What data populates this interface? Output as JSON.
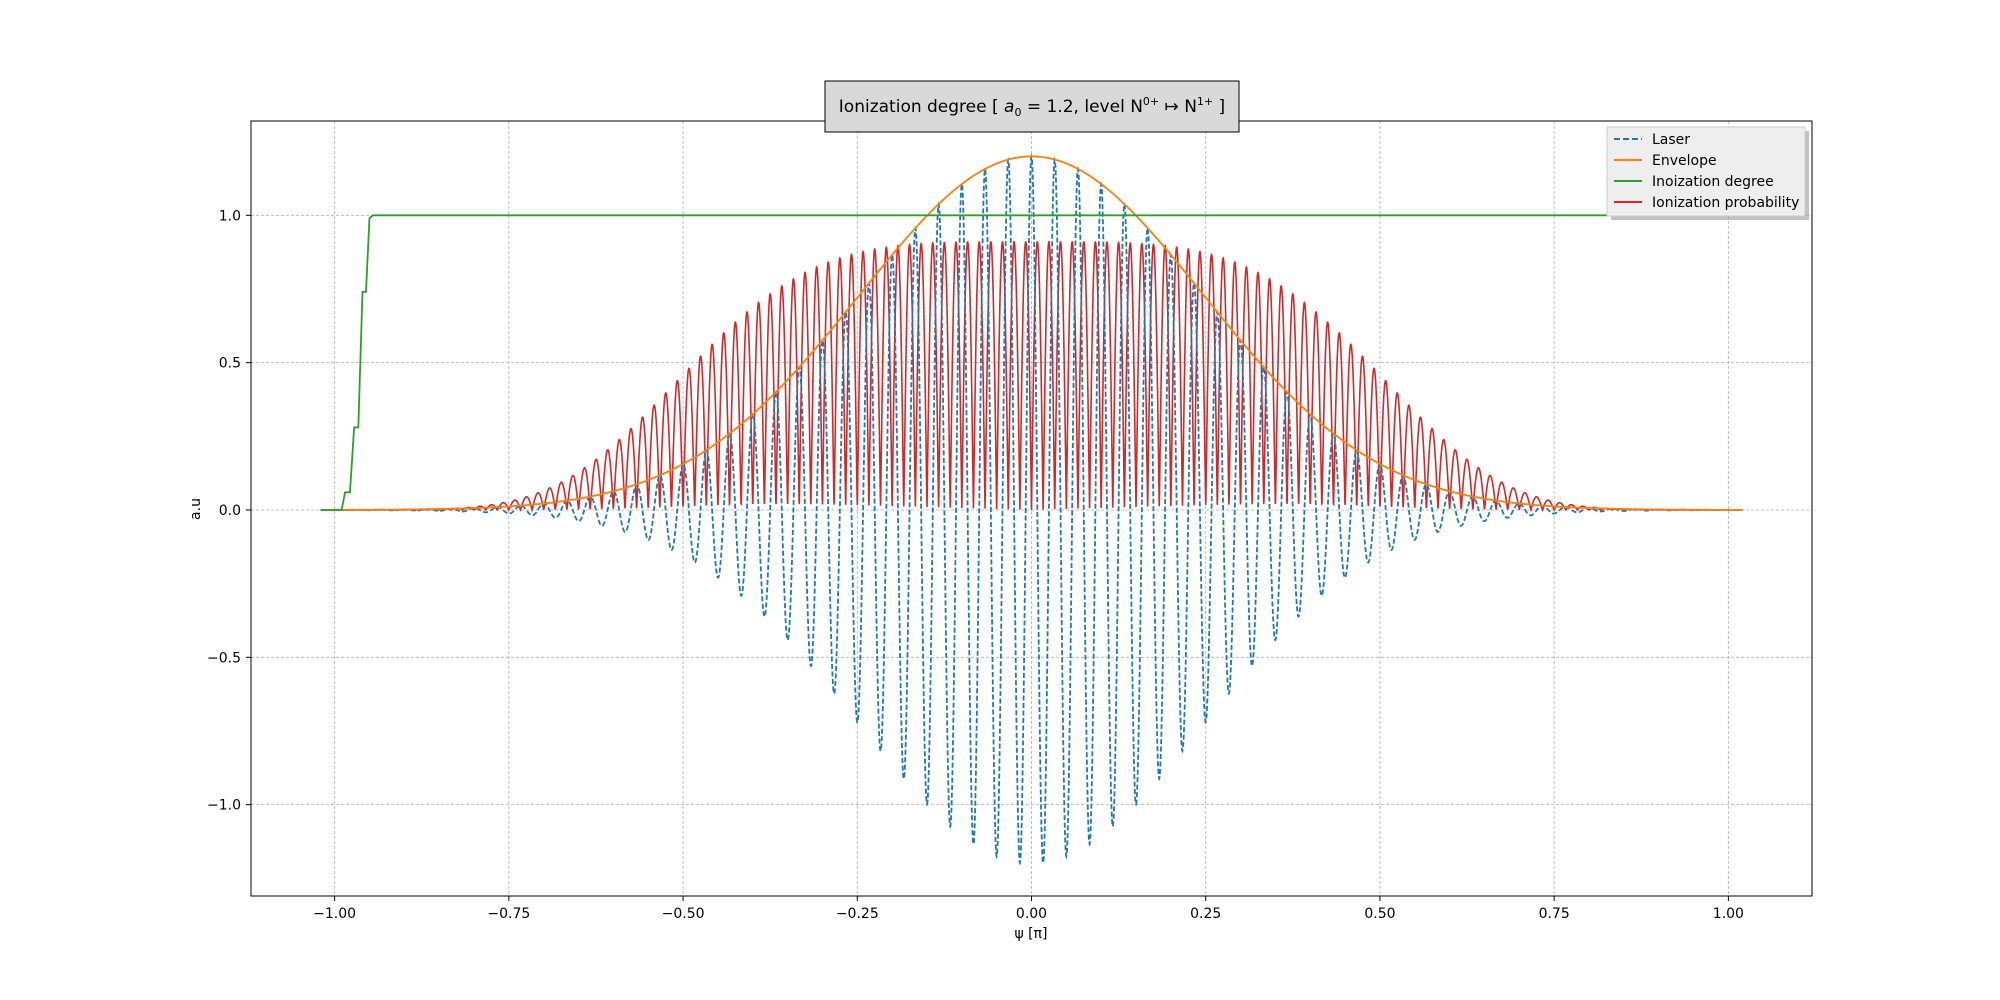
{
  "chart_data": {
    "type": "line",
    "title": "Ionization degree [ a₀ = 1.2, level N⁰⁺ ↦ N¹⁺ ]",
    "title_parts": {
      "prefix": "Ionization degree [ ",
      "a_sym": "a",
      "a_sub": "0",
      "a_eq": " = 1.2, level N",
      "n_sup0": "0+",
      "arrow": " ↦ N",
      "n_sup1": "1+",
      "suffix": " ]"
    },
    "xlabel": "ψ [π]",
    "ylabel": "a.u",
    "xlim": [
      -1.12,
      1.12
    ],
    "ylim": [
      -1.31,
      1.32
    ],
    "xticks": [
      -1.0,
      -0.75,
      -0.5,
      -0.25,
      0.0,
      0.25,
      0.5,
      0.75,
      1.0
    ],
    "xtick_labels": [
      "−1.00",
      "−0.75",
      "−0.50",
      "−0.25",
      "0.00",
      "0.25",
      "0.50",
      "0.75",
      "1.00"
    ],
    "yticks": [
      -1.0,
      -0.5,
      0.0,
      0.5,
      1.0
    ],
    "ytick_labels": [
      "−1.0",
      "−0.5",
      "0.0",
      "0.5",
      "1.0"
    ],
    "grid": true,
    "legend_position": "top-right",
    "x_range": [
      -1.02,
      1.02
    ],
    "series": [
      {
        "name": "Laser",
        "color": "#1f77b4",
        "style": "dashed",
        "formula": "a0 * exp(-(x/0.35)^2) * cos(60*pi*x)",
        "amplitude": 1.2,
        "gaussian_width": 0.35,
        "cycles_per_unit": 30
      },
      {
        "name": "Envelope",
        "color": "#ff7f0e",
        "style": "solid",
        "formula": "a0 * exp(-(x/0.35)^2)",
        "amplitude": 1.2,
        "gaussian_width": 0.35
      },
      {
        "name": "Inoization degree",
        "color": "#2ca02c",
        "style": "solid",
        "x": [
          -1.02,
          -0.99,
          -0.985,
          -0.978,
          -0.972,
          -0.966,
          -0.96,
          -0.955,
          -0.95,
          -0.945,
          -0.94,
          1.02
        ],
        "y": [
          0.0,
          0.0,
          0.06,
          0.06,
          0.28,
          0.28,
          0.74,
          0.74,
          0.99,
          1.0,
          1.0,
          1.0
        ]
      },
      {
        "name": "Ionization probability",
        "color": "#d62728",
        "style": "solid",
        "formula": "0.91 * exp(-(x/0.55)^4) * |sin(60*pi*x)|",
        "amplitude": 0.91,
        "gaussian_width": 0.55,
        "cycles_per_unit": 30
      }
    ]
  }
}
